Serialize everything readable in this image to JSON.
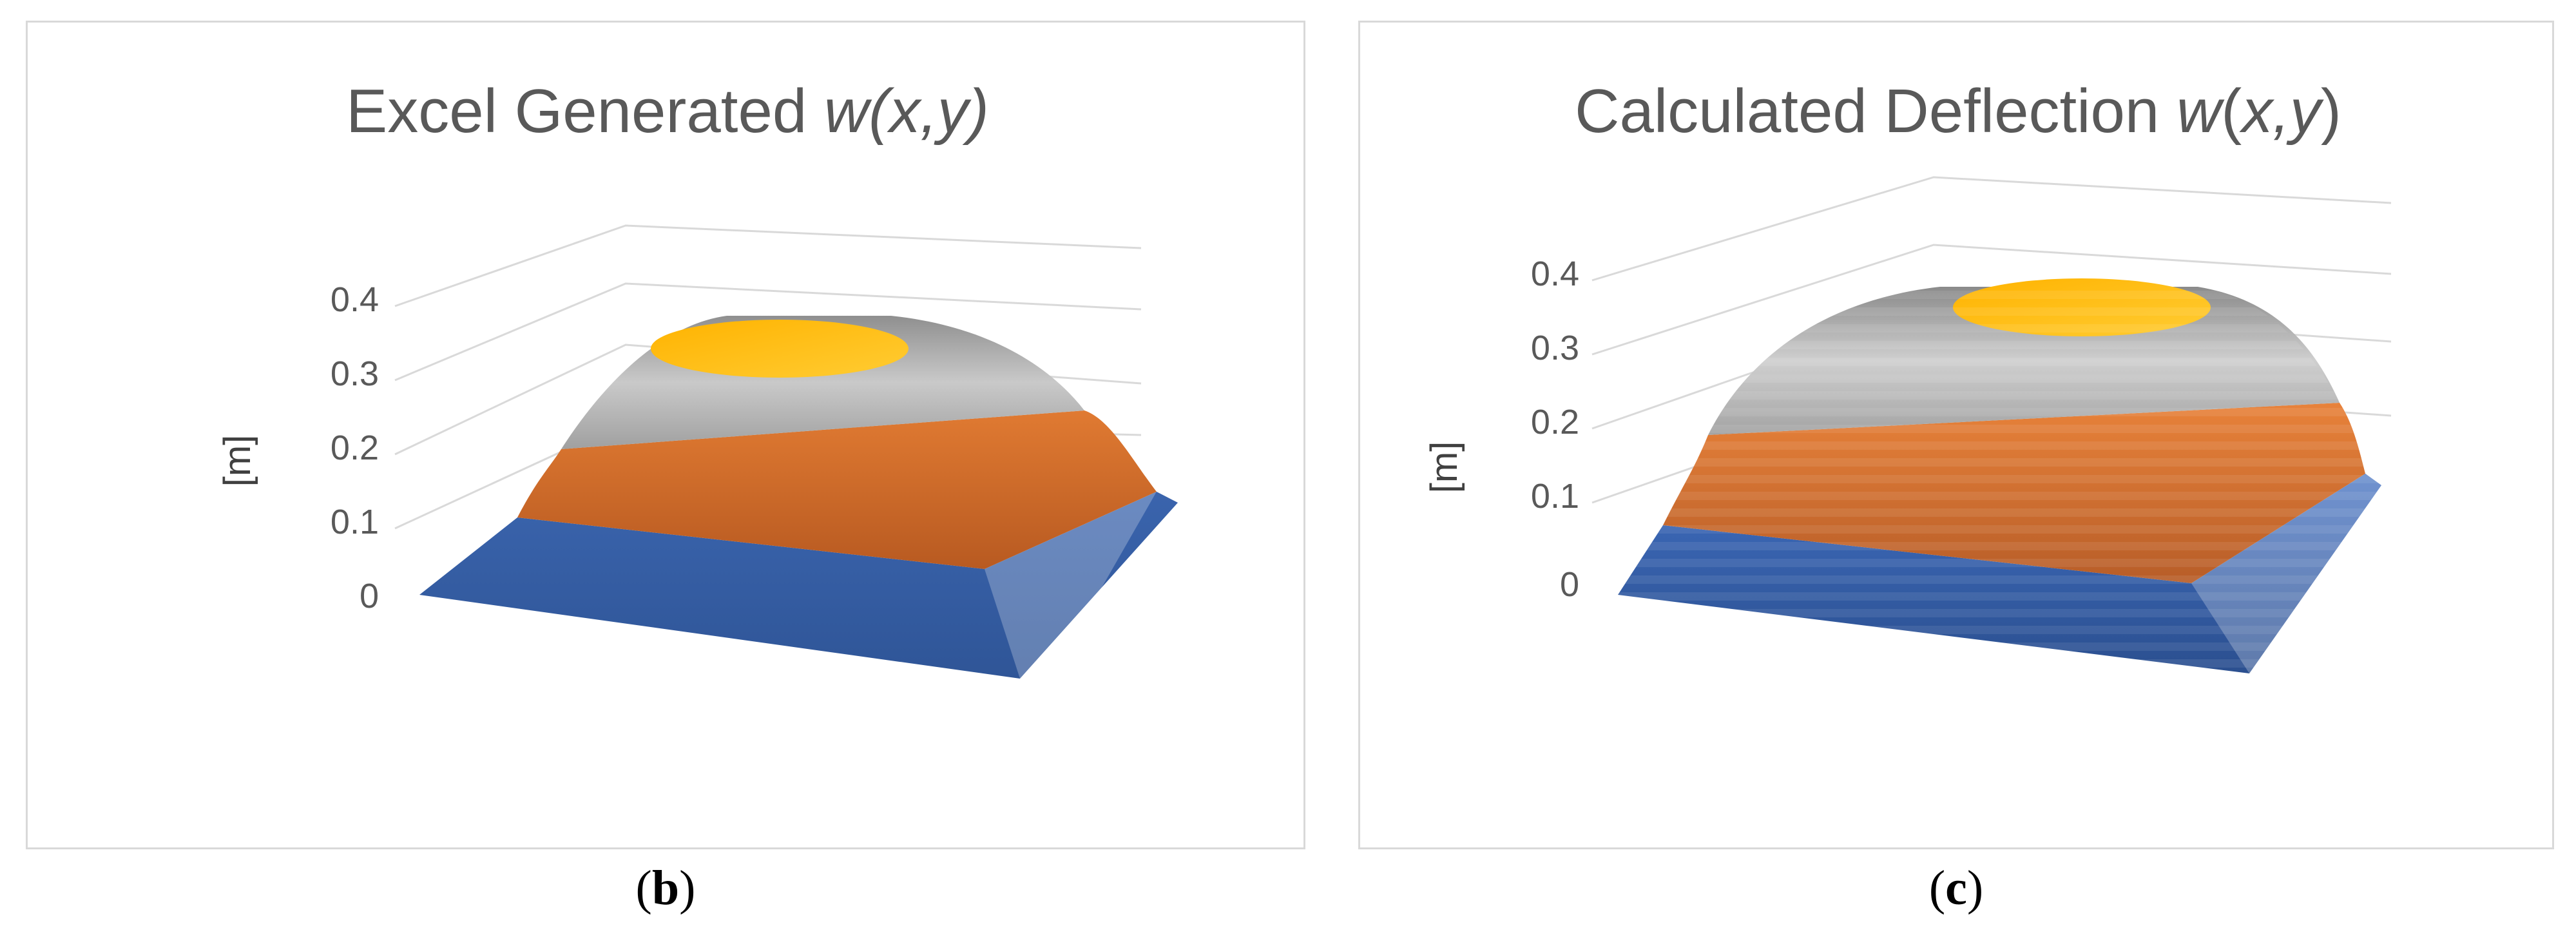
{
  "chart_data": [
    {
      "type": "3d-surface",
      "title_prefix": "Excel Generated ",
      "title_func": "w(x,y)",
      "ylabel": "[m]",
      "zlim": [
        0,
        0.4
      ],
      "tick_labels": [
        "0",
        "0.1",
        "0.2",
        "0.3",
        "0.4"
      ],
      "tick_values": [
        0,
        0.1,
        0.2,
        0.3,
        0.4
      ],
      "bands": [
        {
          "range": "0-0.1",
          "color": "#4472c4"
        },
        {
          "range": "0.1-0.2",
          "color": "#ed7d31"
        },
        {
          "range": "0.2-0.3",
          "color": "#a5a5a5"
        },
        {
          "range": "0.3-0.4",
          "color": "#ffc000"
        }
      ],
      "caption": "b"
    },
    {
      "type": "3d-surface",
      "title_prefix": "Calculated Deflection ",
      "title_func_parts": [
        "w",
        "(",
        "x,y",
        ")"
      ],
      "ylabel": "[m]",
      "zlim": [
        0,
        0.4
      ],
      "tick_labels": [
        "0",
        "0.1",
        "0.2",
        "0.3",
        "0.4"
      ],
      "tick_values": [
        0,
        0.1,
        0.2,
        0.3,
        0.4
      ],
      "bands": [
        {
          "range": "0-0.1",
          "color": "#4472c4"
        },
        {
          "range": "0.1-0.2",
          "color": "#ed7d31"
        },
        {
          "range": "0.2-0.3",
          "color": "#a5a5a5"
        },
        {
          "range": "0.3-0.4",
          "color": "#ffc000"
        }
      ],
      "caption": "c"
    }
  ]
}
